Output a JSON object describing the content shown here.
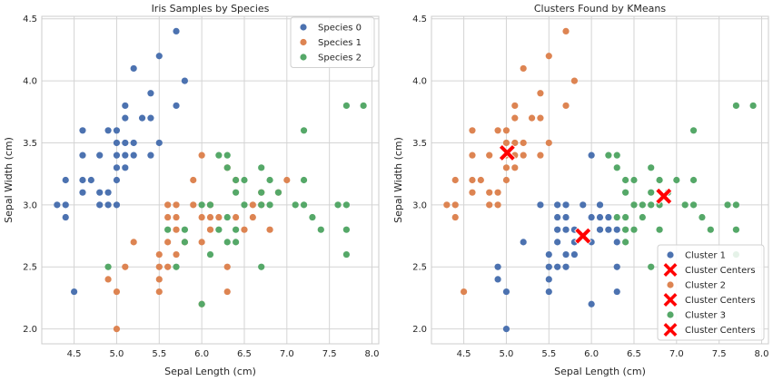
{
  "colors": {
    "c0": "#4c72b0",
    "c1": "#dd8452",
    "c2": "#55a868",
    "center": "#ff0000"
  },
  "chart_data": [
    {
      "type": "scatter",
      "title": "Iris Samples by Species",
      "xlabel": "Sepal Length (cm)",
      "ylabel": "Sepal Width (cm)",
      "xlim": [
        4.12,
        8.08
      ],
      "ylim": [
        1.88,
        4.52
      ],
      "xticks": [
        "4.5",
        "5.0",
        "5.5",
        "6.0",
        "6.5",
        "7.0",
        "7.5",
        "8.0"
      ],
      "yticks": [
        "2.0",
        "2.5",
        "3.0",
        "3.5",
        "4.0",
        "4.5"
      ],
      "grid": true,
      "legend": "top-right",
      "series": [
        {
          "name": "Species 0",
          "color": "#4c72b0",
          "points": [
            [
              4.3,
              3.0
            ],
            [
              4.4,
              2.9
            ],
            [
              4.4,
              3.0
            ],
            [
              4.4,
              3.2
            ],
            [
              4.5,
              2.3
            ],
            [
              4.6,
              3.1
            ],
            [
              4.6,
              3.2
            ],
            [
              4.6,
              3.4
            ],
            [
              4.6,
              3.6
            ],
            [
              4.7,
              3.2
            ],
            [
              4.8,
              3.0
            ],
            [
              4.8,
              3.1
            ],
            [
              4.8,
              3.4
            ],
            [
              4.9,
              3.0
            ],
            [
              4.9,
              3.1
            ],
            [
              4.9,
              3.6
            ],
            [
              5.0,
              3.0
            ],
            [
              5.0,
              3.2
            ],
            [
              5.0,
              3.3
            ],
            [
              5.0,
              3.4
            ],
            [
              5.0,
              3.5
            ],
            [
              5.0,
              3.6
            ],
            [
              5.1,
              3.3
            ],
            [
              5.1,
              3.4
            ],
            [
              5.1,
              3.5
            ],
            [
              5.1,
              3.7
            ],
            [
              5.1,
              3.8
            ],
            [
              5.2,
              3.4
            ],
            [
              5.2,
              3.5
            ],
            [
              5.2,
              4.1
            ],
            [
              5.3,
              3.7
            ],
            [
              5.4,
              3.4
            ],
            [
              5.4,
              3.7
            ],
            [
              5.4,
              3.9
            ],
            [
              5.5,
              3.5
            ],
            [
              5.5,
              4.2
            ],
            [
              5.7,
              3.8
            ],
            [
              5.7,
              4.4
            ],
            [
              5.8,
              4.0
            ]
          ]
        },
        {
          "name": "Species 1",
          "color": "#dd8452",
          "points": [
            [
              4.9,
              2.4
            ],
            [
              5.0,
              2.0
            ],
            [
              5.0,
              2.3
            ],
            [
              5.1,
              2.5
            ],
            [
              5.2,
              2.7
            ],
            [
              5.5,
              2.3
            ],
            [
              5.5,
              2.4
            ],
            [
              5.5,
              2.5
            ],
            [
              5.5,
              2.6
            ],
            [
              5.6,
              2.5
            ],
            [
              5.6,
              2.7
            ],
            [
              5.6,
              2.9
            ],
            [
              5.6,
              3.0
            ],
            [
              5.7,
              2.6
            ],
            [
              5.7,
              2.8
            ],
            [
              5.7,
              2.9
            ],
            [
              5.7,
              3.0
            ],
            [
              5.8,
              2.7
            ],
            [
              5.9,
              3.0
            ],
            [
              5.9,
              3.2
            ],
            [
              6.0,
              2.2
            ],
            [
              6.0,
              2.7
            ],
            [
              6.0,
              2.9
            ],
            [
              6.0,
              3.4
            ],
            [
              6.1,
              2.8
            ],
            [
              6.1,
              2.9
            ],
            [
              6.1,
              3.0
            ],
            [
              6.2,
              2.9
            ],
            [
              6.3,
              2.3
            ],
            [
              6.3,
              2.5
            ],
            [
              6.3,
              3.3
            ],
            [
              6.4,
              2.9
            ],
            [
              6.4,
              3.2
            ],
            [
              6.5,
              2.8
            ],
            [
              6.6,
              2.9
            ],
            [
              6.6,
              3.0
            ],
            [
              6.7,
              3.0
            ],
            [
              6.7,
              3.1
            ],
            [
              6.8,
              2.8
            ],
            [
              6.9,
              3.1
            ],
            [
              7.0,
              3.2
            ]
          ]
        },
        {
          "name": "Species 2",
          "color": "#55a868",
          "points": [
            [
              4.9,
              2.5
            ],
            [
              5.6,
              2.8
            ],
            [
              5.7,
              2.5
            ],
            [
              5.8,
              2.7
            ],
            [
              5.8,
              2.8
            ],
            [
              6.0,
              2.2
            ],
            [
              6.0,
              3.0
            ],
            [
              6.1,
              2.6
            ],
            [
              6.1,
              3.0
            ],
            [
              6.2,
              2.8
            ],
            [
              6.2,
              3.4
            ],
            [
              6.3,
              2.7
            ],
            [
              6.3,
              2.9
            ],
            [
              6.3,
              3.3
            ],
            [
              6.3,
              3.4
            ],
            [
              6.4,
              2.7
            ],
            [
              6.4,
              2.8
            ],
            [
              6.4,
              3.1
            ],
            [
              6.4,
              3.2
            ],
            [
              6.5,
              3.0
            ],
            [
              6.5,
              3.2
            ],
            [
              6.7,
              2.5
            ],
            [
              6.7,
              3.0
            ],
            [
              6.7,
              3.1
            ],
            [
              6.7,
              3.3
            ],
            [
              6.8,
              3.0
            ],
            [
              6.8,
              3.2
            ],
            [
              6.9,
              3.1
            ],
            [
              7.1,
              3.0
            ],
            [
              7.2,
              3.0
            ],
            [
              7.2,
              3.2
            ],
            [
              7.2,
              3.6
            ],
            [
              7.3,
              2.9
            ],
            [
              7.4,
              2.8
            ],
            [
              7.6,
              3.0
            ],
            [
              7.7,
              2.6
            ],
            [
              7.7,
              2.8
            ],
            [
              7.7,
              3.0
            ],
            [
              7.7,
              3.8
            ],
            [
              7.9,
              3.8
            ]
          ]
        }
      ]
    },
    {
      "type": "scatter",
      "title": "Clusters Found by KMeans",
      "xlabel": "Sepal Length (cm)",
      "ylabel": "Sepal Width (cm)",
      "xlim": [
        4.12,
        8.08
      ],
      "ylim": [
        1.88,
        4.52
      ],
      "xticks": [
        "4.5",
        "5.0",
        "5.5",
        "6.0",
        "6.5",
        "7.0",
        "7.5",
        "8.0"
      ],
      "yticks": [
        "2.0",
        "2.5",
        "3.0",
        "3.5",
        "4.0",
        "4.5"
      ],
      "grid": true,
      "legend": "bottom-right",
      "series": [
        {
          "name": "Cluster 1",
          "color": "#4c72b0",
          "points": [
            [
              4.9,
              2.4
            ],
            [
              4.9,
              2.5
            ],
            [
              5.0,
              2.0
            ],
            [
              5.0,
              2.3
            ],
            [
              5.2,
              2.7
            ],
            [
              5.4,
              3.0
            ],
            [
              5.5,
              2.3
            ],
            [
              5.5,
              2.4
            ],
            [
              5.5,
              2.5
            ],
            [
              5.5,
              2.6
            ],
            [
              5.6,
              2.5
            ],
            [
              5.6,
              2.7
            ],
            [
              5.6,
              2.8
            ],
            [
              5.6,
              2.9
            ],
            [
              5.6,
              3.0
            ],
            [
              5.7,
              2.5
            ],
            [
              5.7,
              2.6
            ],
            [
              5.7,
              2.8
            ],
            [
              5.7,
              2.9
            ],
            [
              5.7,
              3.0
            ],
            [
              5.8,
              2.6
            ],
            [
              5.8,
              2.7
            ],
            [
              5.8,
              2.8
            ],
            [
              5.9,
              3.0
            ],
            [
              6.0,
              2.2
            ],
            [
              6.0,
              2.7
            ],
            [
              6.0,
              2.9
            ],
            [
              6.0,
              3.4
            ],
            [
              6.1,
              2.8
            ],
            [
              6.1,
              2.9
            ],
            [
              6.1,
              3.0
            ],
            [
              6.2,
              2.8
            ],
            [
              6.2,
              2.9
            ],
            [
              6.3,
              2.3
            ],
            [
              6.3,
              2.5
            ],
            [
              6.3,
              2.7
            ],
            [
              6.3,
              2.8
            ]
          ]
        },
        {
          "name": "Cluster Centers",
          "color": "#ff0000",
          "marker": "X",
          "points": [
            [
              5.9,
              2.75
            ]
          ]
        },
        {
          "name": "Cluster 2",
          "color": "#dd8452",
          "points": [
            [
              4.3,
              3.0
            ],
            [
              4.4,
              2.9
            ],
            [
              4.4,
              3.0
            ],
            [
              4.4,
              3.2
            ],
            [
              4.5,
              2.3
            ],
            [
              4.6,
              3.1
            ],
            [
              4.6,
              3.2
            ],
            [
              4.6,
              3.4
            ],
            [
              4.6,
              3.6
            ],
            [
              4.7,
              3.2
            ],
            [
              4.8,
              3.0
            ],
            [
              4.8,
              3.1
            ],
            [
              4.8,
              3.4
            ],
            [
              4.9,
              3.0
            ],
            [
              4.9,
              3.1
            ],
            [
              4.9,
              3.6
            ],
            [
              5.0,
              3.2
            ],
            [
              5.0,
              3.3
            ],
            [
              5.0,
              3.4
            ],
            [
              5.0,
              3.5
            ],
            [
              5.0,
              3.6
            ],
            [
              5.1,
              3.3
            ],
            [
              5.1,
              3.4
            ],
            [
              5.1,
              3.5
            ],
            [
              5.1,
              3.7
            ],
            [
              5.1,
              3.8
            ],
            [
              5.2,
              3.4
            ],
            [
              5.2,
              3.5
            ],
            [
              5.2,
              4.1
            ],
            [
              5.3,
              3.7
            ],
            [
              5.4,
              3.4
            ],
            [
              5.4,
              3.7
            ],
            [
              5.4,
              3.9
            ],
            [
              5.5,
              3.5
            ],
            [
              5.5,
              4.2
            ],
            [
              5.7,
              3.8
            ],
            [
              5.7,
              4.4
            ],
            [
              5.8,
              4.0
            ]
          ]
        },
        {
          "name": "Cluster Centers",
          "color": "#ff0000",
          "marker": "X",
          "points": [
            [
              5.01,
              3.42
            ]
          ]
        },
        {
          "name": "Cluster 3",
          "color": "#55a868",
          "points": [
            [
              6.2,
              3.4
            ],
            [
              6.3,
              2.9
            ],
            [
              6.3,
              3.3
            ],
            [
              6.3,
              3.4
            ],
            [
              6.4,
              2.7
            ],
            [
              6.4,
              2.8
            ],
            [
              6.4,
              2.9
            ],
            [
              6.4,
              3.1
            ],
            [
              6.4,
              3.2
            ],
            [
              6.5,
              2.8
            ],
            [
              6.5,
              3.0
            ],
            [
              6.5,
              3.2
            ],
            [
              6.6,
              2.9
            ],
            [
              6.6,
              3.0
            ],
            [
              6.7,
              2.5
            ],
            [
              6.7,
              3.0
            ],
            [
              6.7,
              3.1
            ],
            [
              6.7,
              3.3
            ],
            [
              6.8,
              2.8
            ],
            [
              6.8,
              3.0
            ],
            [
              6.8,
              3.2
            ],
            [
              6.9,
              3.1
            ],
            [
              7.0,
              3.2
            ],
            [
              7.1,
              3.0
            ],
            [
              7.2,
              3.0
            ],
            [
              7.2,
              3.2
            ],
            [
              7.2,
              3.6
            ],
            [
              7.3,
              2.9
            ],
            [
              7.4,
              2.8
            ],
            [
              7.6,
              3.0
            ],
            [
              7.7,
              2.6
            ],
            [
              7.7,
              2.8
            ],
            [
              7.7,
              3.0
            ],
            [
              7.7,
              3.8
            ],
            [
              7.9,
              3.8
            ]
          ]
        },
        {
          "name": "Cluster Centers",
          "color": "#ff0000",
          "marker": "X",
          "points": [
            [
              6.85,
              3.07
            ]
          ]
        }
      ]
    }
  ]
}
